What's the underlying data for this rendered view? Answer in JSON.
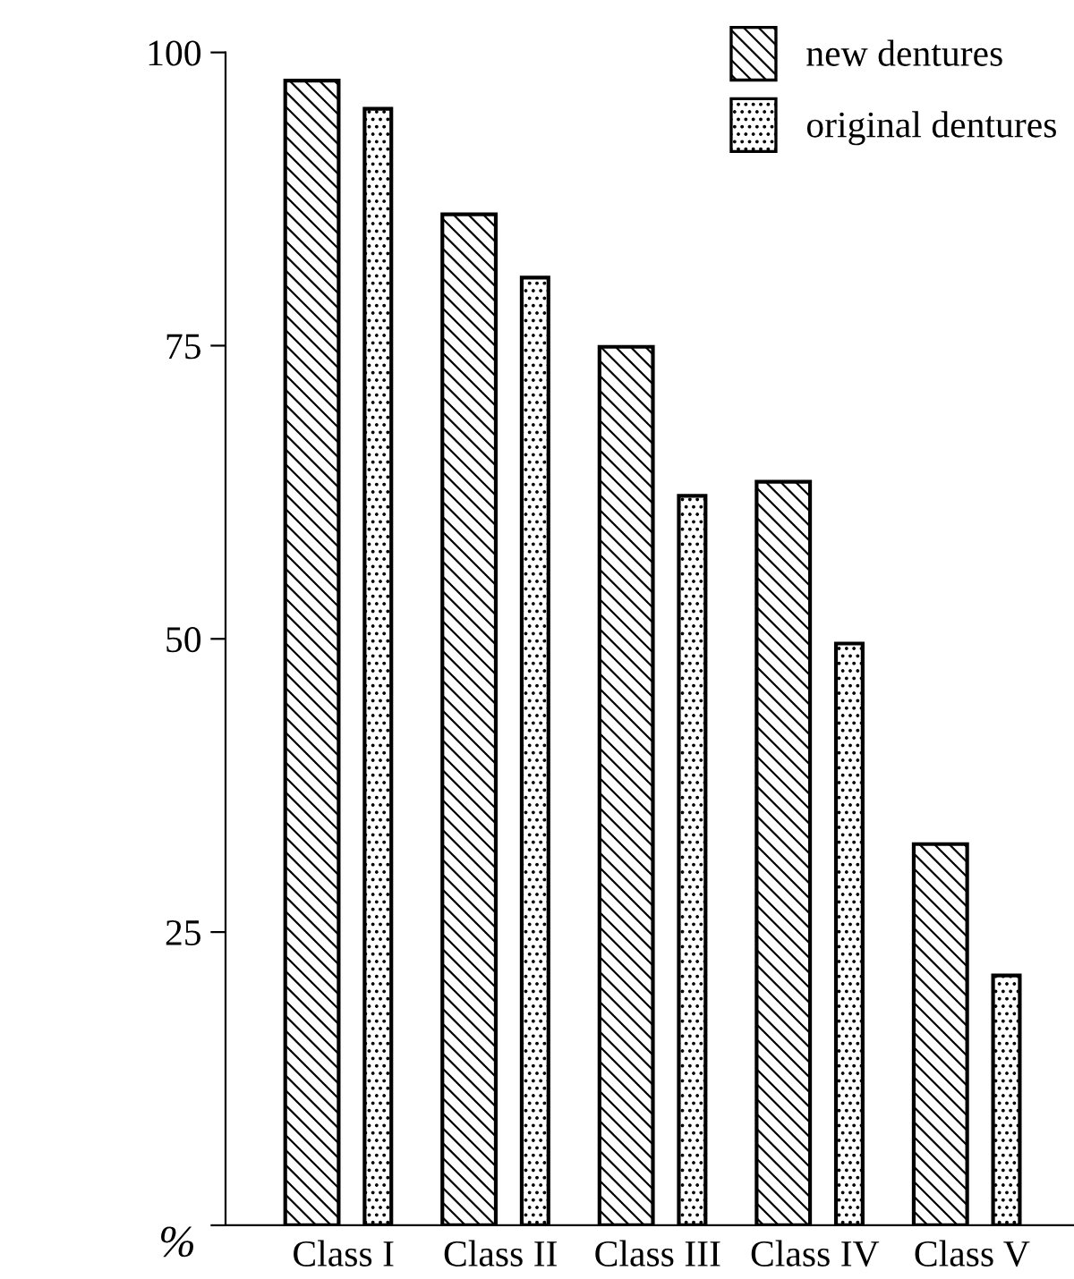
{
  "chart_data": {
    "type": "bar",
    "ylabel": "%",
    "categories": [
      "Class I",
      "Class II",
      "Class III",
      "Class IV",
      "Class V"
    ],
    "series": [
      {
        "name": "new dentures",
        "color": "#000000",
        "values": [
          97.6,
          86.2,
          74.9,
          63.4,
          32.5
        ]
      },
      {
        "name": "original dentures",
        "color": "#000000",
        "values": [
          95.2,
          80.8,
          62.2,
          49.6,
          21.3
        ]
      }
    ],
    "ylim": [
      0,
      100
    ],
    "yticks": [
      {
        "value": 0,
        "label": null
      },
      25,
      50,
      75,
      100
    ],
    "grid": false,
    "legend": "top right"
  }
}
